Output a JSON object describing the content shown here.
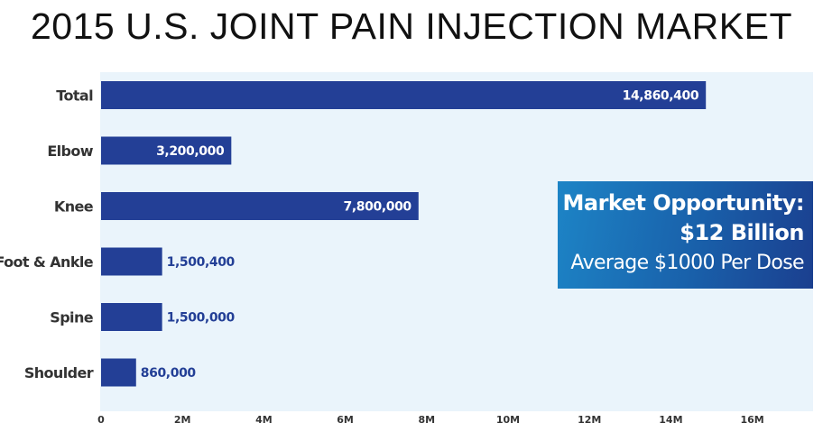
{
  "chart_data": {
    "type": "bar",
    "orientation": "horizontal",
    "title": "2015 U.S. JOINT PAIN INJECTION MARKET",
    "categories": [
      "Total",
      "Elbow",
      "Knee",
      "Foot & Ankle",
      "Spine",
      "Shoulder"
    ],
    "values": [
      14860400,
      3200000,
      7800000,
      1500400,
      1500000,
      860000
    ],
    "data_labels": [
      "14,860,400",
      "3,200,000",
      "7,800,000",
      "1,500,400",
      "1,500,000",
      "860,000"
    ],
    "x_ticks": [
      0,
      2000000,
      4000000,
      6000000,
      8000000,
      10000000,
      12000000,
      14000000,
      16000000
    ],
    "x_tick_labels": [
      "0",
      "2M",
      "4M",
      "6M",
      "8M",
      "10M",
      "12M",
      "14M",
      "16M"
    ],
    "xlim": [
      0,
      17400000
    ],
    "grid": false,
    "colors": {
      "bar": "#233f96",
      "plot_background": "#eaf4fb",
      "label_inside": "#ffffff",
      "label_outside": "#233f96",
      "axis_text": "#333333"
    },
    "annotation": {
      "line1": "Market Opportunity:",
      "line2": "$12 Billion",
      "line3": "Average $1000 Per Dose"
    }
  }
}
